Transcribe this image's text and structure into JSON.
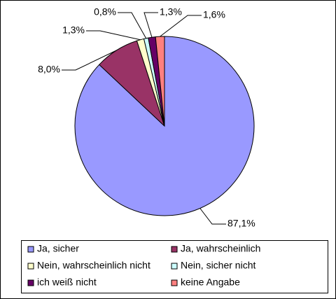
{
  "chart_data": {
    "type": "pie",
    "categories": [
      "Ja, sicher",
      "Ja, wahrscheinlich",
      "Nein, wahrscheinlich nicht",
      "Nein, sicher nicht",
      "ich weiß nicht",
      "keine Angabe"
    ],
    "values": [
      87.1,
      8.0,
      1.3,
      0.8,
      1.3,
      1.6
    ],
    "value_labels": [
      "87,1%",
      "8,0%",
      "1,3%",
      "0,8%",
      "1,3%",
      "1,6%"
    ],
    "colors": [
      "#9999ff",
      "#993366",
      "#ffffcc",
      "#ccffff",
      "#660066",
      "#ff8080"
    ]
  }
}
